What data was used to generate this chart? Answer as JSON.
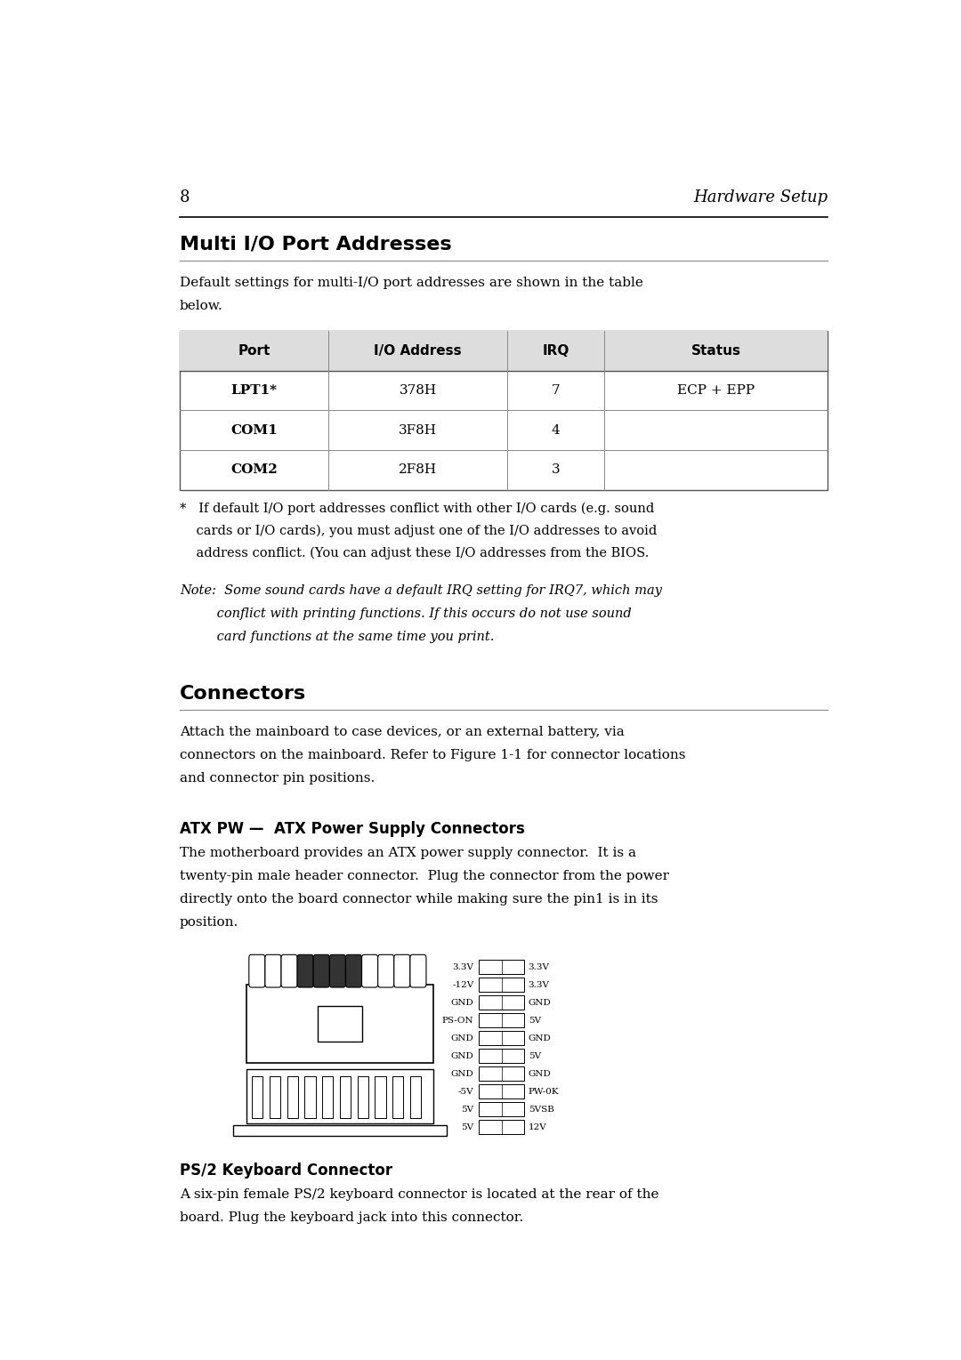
{
  "page_num": "8",
  "page_header_right": "Hardware Setup",
  "bg_color": "#ffffff",
  "text_color": "#000000",
  "section1_title": "Multi I/O Port Addresses",
  "section1_intro": "Default settings for multi-I/O port addresses are shown in the table\nbelow.",
  "table_headers": [
    "Port",
    "I/O Address",
    "IRQ",
    "Status"
  ],
  "table_rows": [
    [
      "LPT1*",
      "378H",
      "7",
      "ECP + EPP"
    ],
    [
      "COM1",
      "3F8H",
      "4",
      ""
    ],
    [
      "COM2",
      "2F8H",
      "3",
      ""
    ]
  ],
  "footnote_star": "*   If default I/O port addresses conflict with other I/O cards (e.g. sound\n    cards or I/O cards), you must adjust one of the I/O addresses to avoid\n    address conflict. (You can adjust these I/O addresses from the BIOS.",
  "note_line1": "Note:  Some sound cards have a default IRQ setting for IRQ7, which may",
  "note_line2": "         conflict with printing functions. If this occurs do not use sound",
  "note_line3": "         card functions at the same time you print.",
  "section2_title": "Connectors",
  "section2_intro": "Attach the mainboard to case devices, or an external battery, via\nconnectors on the mainboard. Refer to Figure 1-1 for connector locations\nand connector pin positions.",
  "subsection1_title": "ATX PW —  ATX Power Supply Connectors",
  "subsection1_line1": "The motherboard provides an ATX power supply connector.  It is a",
  "subsection1_line2": "twenty-pin male header connector.  Plug the connector from the power",
  "subsection1_line3": "directly onto the board connector while making sure the pin1 is in its",
  "subsection1_line4": "position.",
  "atx_left_pins": [
    "3.3V",
    "-12V",
    "GND",
    "PS-ON",
    "GND",
    "GND",
    "GND",
    "-5V",
    "5V",
    "5V"
  ],
  "atx_right_pins": [
    "3.3V",
    "3.3V",
    "GND",
    "5V",
    "GND",
    "5V",
    "GND",
    "PW-0K",
    "5VSB",
    "12V"
  ],
  "subsection2_title": "PS/2 Keyboard Connector",
  "subsection2_line1": "A six-pin female PS/2 keyboard connector is located at the rear of the",
  "subsection2_line2": "board. Plug the keyboard jack into this connector."
}
